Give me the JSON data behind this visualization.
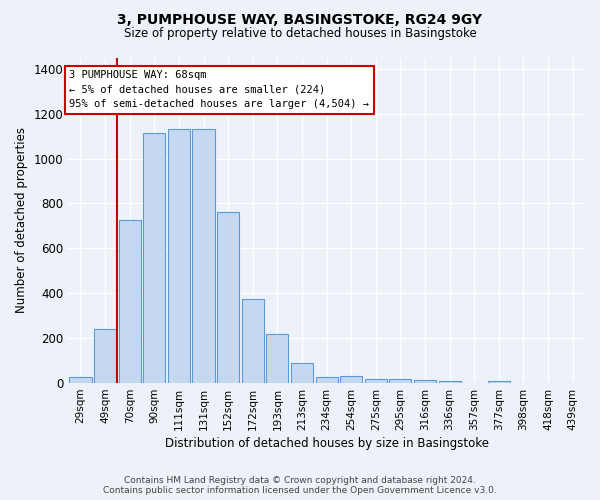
{
  "title": "3, PUMPHOUSE WAY, BASINGSTOKE, RG24 9GY",
  "subtitle": "Size of property relative to detached houses in Basingstoke",
  "xlabel": "Distribution of detached houses by size in Basingstoke",
  "ylabel": "Number of detached properties",
  "categories": [
    "29sqm",
    "49sqm",
    "70sqm",
    "90sqm",
    "111sqm",
    "131sqm",
    "152sqm",
    "172sqm",
    "193sqm",
    "213sqm",
    "234sqm",
    "254sqm",
    "275sqm",
    "295sqm",
    "316sqm",
    "336sqm",
    "357sqm",
    "377sqm",
    "398sqm",
    "418sqm",
    "439sqm"
  ],
  "values": [
    28,
    240,
    725,
    1115,
    1130,
    1130,
    760,
    375,
    220,
    88,
    28,
    32,
    20,
    18,
    12,
    8,
    0,
    10,
    0,
    0,
    0
  ],
  "bar_color": "#c5d8f0",
  "bar_edge_color": "#5b9bd5",
  "marker_line_color": "#cc0000",
  "annotation_line1": "3 PUMPHOUSE WAY: 68sqm",
  "annotation_line2": "← 5% of detached houses are smaller (224)",
  "annotation_line3": "95% of semi-detached houses are larger (4,504) →",
  "annotation_box_color": "#ffffff",
  "annotation_box_edge": "#cc0000",
  "background_color": "#edf1f8",
  "plot_bg_color": "#edf1f8",
  "grid_color": "#ffffff",
  "ylim": [
    0,
    1450
  ],
  "yticks": [
    0,
    200,
    400,
    600,
    800,
    1000,
    1200,
    1400
  ],
  "title_fontsize": 10,
  "subtitle_fontsize": 8.5,
  "footer_line1": "Contains HM Land Registry data © Crown copyright and database right 2024.",
  "footer_line2": "Contains public sector information licensed under the Open Government Licence v3.0."
}
